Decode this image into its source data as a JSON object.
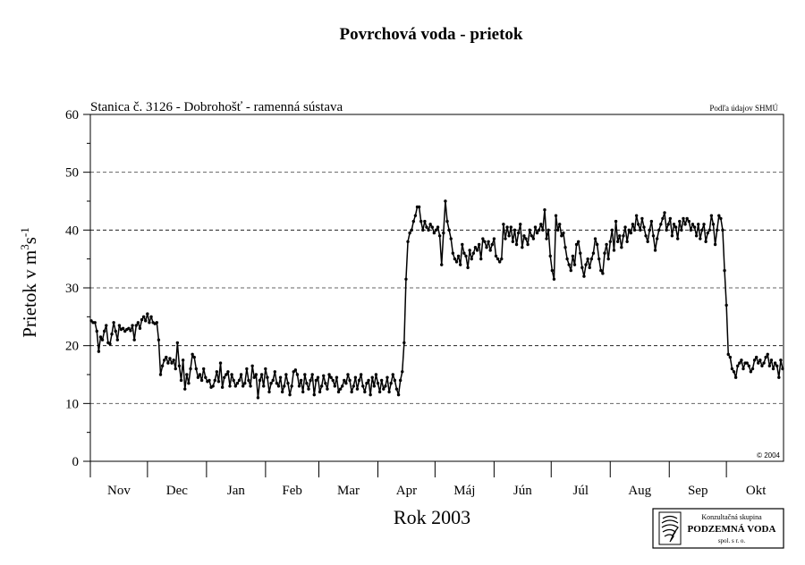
{
  "chart_data": {
    "type": "line",
    "title": "Povrchová voda - prietok",
    "subtitle": "Stanica č. 3126 - Dobrohošť - ramenná sústava",
    "source_note": "Podľa údajov SHMÚ",
    "copyright": "© 2004",
    "xlabel": "Rok 2003",
    "ylabel_main": "Prietok  v  m",
    "ylabel_sup1": "3",
    "ylabel_mid": "s",
    "ylabel_sup2": "-1",
    "ylim": [
      0,
      60
    ],
    "yticks": [
      0,
      10,
      20,
      30,
      40,
      50,
      60
    ],
    "xlim": [
      "2002-11-01",
      "2003-10-31"
    ],
    "month_labels": [
      "Nov",
      "Dec",
      "Jan",
      "Feb",
      "Mar",
      "Apr",
      "Máj",
      "Jún",
      "Júl",
      "Aug",
      "Sep",
      "Okt"
    ],
    "month_starts": [
      "2002-11-01",
      "2002-12-01",
      "2003-01-01",
      "2003-02-01",
      "2003-03-01",
      "2003-04-01",
      "2003-05-01",
      "2003-06-01",
      "2003-07-01",
      "2003-08-01",
      "2003-09-01",
      "2003-10-01"
    ],
    "grid": "horizontal dashed at 10, 20, 30, 40, 50",
    "line_color": "#000000",
    "marker": "filled-circle",
    "series": [
      {
        "values": [
          24.3,
          24.0,
          24.0,
          22.5,
          19.0,
          21.5,
          21.0,
          22.5,
          23.5,
          20.5,
          20.3,
          22.0,
          24.0,
          22.5,
          21.0,
          23.5,
          22.8,
          23.0,
          22.5,
          22.8,
          23.0,
          22.6,
          23.5,
          21.0,
          23.5,
          24.0,
          23.0,
          24.5,
          25.0,
          24.3,
          25.5,
          24.0,
          25.0,
          24.0,
          23.8,
          24.0,
          21.0,
          15.0,
          16.5,
          17.5,
          18.0,
          17.0,
          17.8,
          17.0,
          17.5,
          16.0,
          20.5,
          16.5,
          14.0,
          17.5,
          12.5,
          15.0,
          13.5,
          16.0,
          18.5,
          18.0,
          16.0,
          14.5,
          15.0,
          14.0,
          16.0,
          14.5,
          13.8,
          14.0,
          12.8,
          13.0,
          14.0,
          15.5,
          13.8,
          17.0,
          12.8,
          14.5,
          15.0,
          15.5,
          13.0,
          15.0,
          14.0,
          13.0,
          13.5,
          14.0,
          15.0,
          13.0,
          13.5,
          16.0,
          14.0,
          13.0,
          16.5,
          14.5,
          15.0,
          11.0,
          14.0,
          15.0,
          13.0,
          16.0,
          14.5,
          12.0,
          13.5,
          14.0,
          15.5,
          13.5,
          13.0,
          14.5,
          12.0,
          13.0,
          15.0,
          13.5,
          11.5,
          13.0,
          15.5,
          15.8,
          15.0,
          13.0,
          14.0,
          12.0,
          15.0,
          13.5,
          12.5,
          14.0,
          15.0,
          11.5,
          14.0,
          14.5,
          12.0,
          13.0,
          14.8,
          13.5,
          12.5,
          15.0,
          14.5,
          14.0,
          13.0,
          14.5,
          12.0,
          12.5,
          13.0,
          14.0,
          13.5,
          15.0,
          14.0,
          12.0,
          13.0,
          14.5,
          12.5,
          14.0,
          15.0,
          13.0,
          12.0,
          13.5,
          14.0,
          11.5,
          14.5,
          13.0,
          15.0,
          13.5,
          12.0,
          14.0,
          12.5,
          13.0,
          14.5,
          12.0,
          13.5,
          15.0,
          14.0,
          12.5,
          11.5,
          14.0,
          15.5,
          20.5,
          31.5,
          38.0,
          39.5,
          40.0,
          41.5,
          42.5,
          44.0,
          44.0,
          41.5,
          40.0,
          41.5,
          40.5,
          40.0,
          41.0,
          40.5,
          39.5,
          40.0,
          40.5,
          39.0,
          34.0,
          39.5,
          45.0,
          41.5,
          40.0,
          38.5,
          36.0,
          35.0,
          34.5,
          35.5,
          34.0,
          37.5,
          36.0,
          35.5,
          33.5,
          36.5,
          35.0,
          36.0,
          37.0,
          36.5,
          37.5,
          35.0,
          38.5,
          38.0,
          37.0,
          38.0,
          36.5,
          37.5,
          38.5,
          35.5,
          35.0,
          34.5,
          35.0,
          41.0,
          38.5,
          40.5,
          39.0,
          40.5,
          38.0,
          40.0,
          37.5,
          39.5,
          41.0,
          37.0,
          39.0,
          38.5,
          37.5,
          40.0,
          39.0,
          38.5,
          40.5,
          39.5,
          40.0,
          41.0,
          40.0,
          43.5,
          38.5,
          40.0,
          35.5,
          33.0,
          31.5,
          42.5,
          40.0,
          41.0,
          39.0,
          39.5,
          37.0,
          35.0,
          34.0,
          33.0,
          35.5,
          34.0,
          37.5,
          38.0,
          36.0,
          33.5,
          32.0,
          34.0,
          35.0,
          33.5,
          35.0,
          36.0,
          38.5,
          37.5,
          35.0,
          33.0,
          32.5,
          36.0,
          37.5,
          35.0,
          38.0,
          40.0,
          36.5,
          41.5,
          38.0,
          39.0,
          37.0,
          39.0,
          40.5,
          38.0,
          40.0,
          39.5,
          41.0,
          40.0,
          42.5,
          41.0,
          40.0,
          42.0,
          40.5,
          39.0,
          38.0,
          40.0,
          41.5,
          39.0,
          36.5,
          38.5,
          40.0,
          41.0,
          42.0,
          43.0,
          40.0,
          41.0,
          42.0,
          39.0,
          41.0,
          40.5,
          38.5,
          41.5,
          40.0,
          42.0,
          41.0,
          42.0,
          41.5,
          40.0,
          41.0,
          40.5,
          39.0,
          41.0,
          38.5,
          40.0,
          41.0,
          38.0,
          39.5,
          40.0,
          42.5,
          41.0,
          37.5,
          40.0,
          42.5,
          42.0,
          40.0,
          33.0,
          27.0,
          18.5,
          18.0,
          16.0,
          15.5,
          14.5,
          16.5,
          17.0,
          17.5,
          16.0,
          17.0,
          17.0,
          16.5,
          15.5,
          16.0,
          17.5,
          18.0,
          17.0,
          17.5,
          16.5,
          17.0,
          18.0,
          18.5,
          16.5,
          17.5,
          16.0,
          17.0,
          16.5,
          14.5,
          17.5,
          16.0
        ]
      }
    ]
  },
  "branding": {
    "line1": "Konzultačná skupina",
    "line2": "PODZEMNÁ VODA",
    "line3": "spol. s r. o."
  }
}
